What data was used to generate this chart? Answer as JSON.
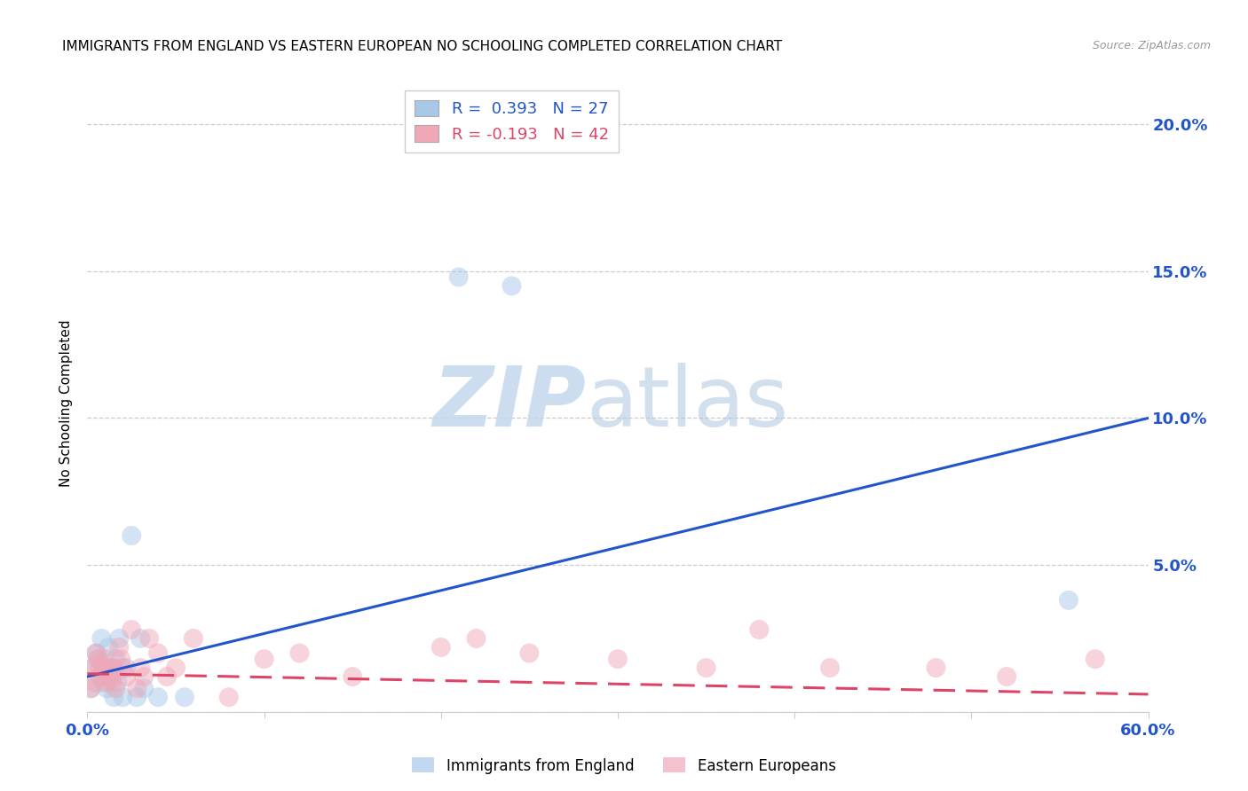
{
  "title": "IMMIGRANTS FROM ENGLAND VS EASTERN EUROPEAN NO SCHOOLING COMPLETED CORRELATION CHART",
  "source": "Source: ZipAtlas.com",
  "ylabel": "No Schooling Completed",
  "xlim": [
    0.0,
    0.6
  ],
  "ylim": [
    0.0,
    0.21
  ],
  "blue_R": 0.393,
  "blue_N": 27,
  "pink_R": -0.193,
  "pink_N": 42,
  "blue_color": "#a8c8e8",
  "pink_color": "#f0a8b8",
  "blue_line_color": "#2255cc",
  "pink_line_color": "#dd4466",
  "legend_label_blue": "Immigrants from England",
  "legend_label_pink": "Eastern Europeans",
  "blue_points_x": [
    0.002,
    0.004,
    0.005,
    0.006,
    0.007,
    0.008,
    0.009,
    0.01,
    0.011,
    0.012,
    0.013,
    0.014,
    0.015,
    0.016,
    0.017,
    0.018,
    0.02,
    0.022,
    0.025,
    0.028,
    0.03,
    0.032,
    0.04,
    0.055,
    0.21,
    0.24,
    0.555
  ],
  "blue_points_y": [
    0.008,
    0.015,
    0.02,
    0.018,
    0.012,
    0.025,
    0.01,
    0.015,
    0.008,
    0.022,
    0.015,
    0.012,
    0.005,
    0.018,
    0.01,
    0.025,
    0.005,
    0.015,
    0.06,
    0.005,
    0.025,
    0.008,
    0.005,
    0.005,
    0.148,
    0.145,
    0.038
  ],
  "pink_points_x": [
    0.002,
    0.003,
    0.004,
    0.005,
    0.006,
    0.007,
    0.008,
    0.009,
    0.01,
    0.011,
    0.012,
    0.013,
    0.014,
    0.015,
    0.016,
    0.018,
    0.019,
    0.02,
    0.022,
    0.025,
    0.028,
    0.03,
    0.032,
    0.035,
    0.04,
    0.045,
    0.05,
    0.06,
    0.08,
    0.1,
    0.12,
    0.15,
    0.2,
    0.22,
    0.25,
    0.3,
    0.35,
    0.38,
    0.42,
    0.48,
    0.52,
    0.57
  ],
  "pink_points_y": [
    0.008,
    0.015,
    0.01,
    0.02,
    0.018,
    0.015,
    0.012,
    0.015,
    0.018,
    0.01,
    0.015,
    0.012,
    0.01,
    0.015,
    0.008,
    0.022,
    0.018,
    0.015,
    0.012,
    0.028,
    0.008,
    0.015,
    0.012,
    0.025,
    0.02,
    0.012,
    0.015,
    0.025,
    0.005,
    0.018,
    0.02,
    0.012,
    0.022,
    0.025,
    0.02,
    0.018,
    0.015,
    0.028,
    0.015,
    0.015,
    0.012,
    0.018
  ],
  "blue_line_x": [
    0.0,
    0.6
  ],
  "blue_line_y": [
    0.012,
    0.1
  ],
  "pink_line_x": [
    0.0,
    0.6
  ],
  "pink_line_y": [
    0.013,
    0.006
  ],
  "background_color": "#ffffff",
  "grid_color": "#cccccc",
  "title_fontsize": 11,
  "tick_color": "#2255cc",
  "source_color": "#999999"
}
